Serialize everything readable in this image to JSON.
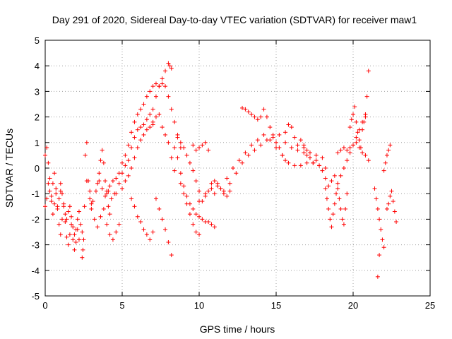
{
  "chart_data": {
    "type": "scatter",
    "title": "Day 291 of 2020, Sidereal Day-to-day VTEC variation (SDTVAR) for receiver maw1",
    "xlabel": "GPS time / hours",
    "ylabel": "SDTVAR / TECUs",
    "xlim": [
      0,
      25
    ],
    "ylim": [
      -5,
      5
    ],
    "xticks": [
      0,
      5,
      10,
      15,
      20,
      25
    ],
    "yticks": [
      -5,
      -4,
      -3,
      -2,
      -1,
      0,
      1,
      2,
      3,
      4,
      5
    ],
    "grid": true,
    "marker": "+",
    "marker_color": "#ff0000",
    "series": [
      {
        "name": "SDTVAR",
        "tracks": [
          {
            "x": [
              0.0,
              0.1,
              0.2,
              0.3,
              0.4,
              0.5,
              0.6,
              0.7,
              0.8,
              0.9,
              1.0,
              1.1,
              1.2,
              1.3,
              1.4,
              1.5,
              1.6,
              1.7,
              1.8,
              1.9,
              2.0,
              2.1,
              2.2
            ],
            "y": [
              -1.5,
              -1.2,
              -0.6,
              -0.9,
              -1.3,
              -1.8,
              -1.4,
              -1.0,
              -1.6,
              -2.2,
              -2.6,
              -2.0,
              -1.5,
              -2.1,
              -2.7,
              -3.0,
              -2.6,
              -2.2,
              -2.8,
              -3.2,
              -2.9,
              -2.4,
              -2.8
            ]
          },
          {
            "x": [
              0.0,
              0.1,
              0.2,
              0.3,
              0.4,
              0.5,
              0.6,
              0.7,
              0.8,
              0.9,
              1.0
            ],
            "y": [
              0.5,
              0.8,
              0.2,
              -0.4,
              -1.1,
              -0.6,
              -0.2,
              -0.8,
              -1.5,
              -1.2,
              -0.9
            ]
          },
          {
            "x": [
              1.0,
              1.1,
              1.2,
              1.3,
              1.4,
              1.5,
              1.6,
              1.7,
              1.8,
              1.9,
              2.0,
              2.1,
              2.2,
              2.3,
              2.4
            ],
            "y": [
              -0.6,
              -1.0,
              -1.4,
              -1.8,
              -2.0,
              -1.7,
              -1.5,
              -1.9,
              -2.3,
              -2.6,
              -2.4,
              -2.0,
              -1.7,
              -2.2,
              -2.5
            ]
          },
          {
            "x": [
              2.4,
              2.45,
              2.5,
              2.55,
              2.6,
              2.7,
              2.8,
              2.9,
              3.0
            ],
            "y": [
              -3.5,
              -3.2,
              -2.8,
              -1.5,
              0.5,
              1.0,
              -0.5,
              -1.2,
              -1.4
            ]
          },
          {
            "x": [
              2.7,
              2.9,
              3.1,
              3.3,
              3.5,
              3.7,
              3.9,
              4.1,
              4.3,
              4.5
            ],
            "y": [
              -0.5,
              -0.9,
              -1.3,
              -0.9,
              -0.5,
              -0.8,
              -1.1,
              -0.9,
              -1.2,
              -1.0
            ]
          },
          {
            "x": [
              3.0,
              3.2,
              3.4,
              3.6,
              3.8,
              4.0,
              4.2,
              4.4,
              4.6,
              4.8
            ],
            "y": [
              -1.6,
              -2.0,
              -2.3,
              -1.9,
              -1.6,
              -2.2,
              -2.6,
              -2.8,
              -2.5,
              -2.2
            ]
          },
          {
            "x": [
              3.4,
              3.5,
              3.6,
              3.7,
              3.8,
              3.9,
              4.0,
              4.1,
              4.2
            ],
            "y": [
              -0.6,
              -0.2,
              0.3,
              0.7,
              0.2,
              -0.5,
              -1.0,
              -1.5,
              -1.8
            ]
          },
          {
            "x": [
              4.0,
              4.2,
              4.4,
              4.6,
              4.8,
              5.0,
              5.2,
              5.4,
              5.6,
              5.8,
              6.0,
              6.2,
              6.4,
              6.6,
              6.8,
              7.0,
              7.2,
              7.4,
              7.6,
              7.8,
              8.0,
              8.1,
              8.2
            ],
            "y": [
              -0.9,
              -0.7,
              -0.5,
              -0.4,
              -0.2,
              0.2,
              0.5,
              0.9,
              1.4,
              1.8,
              2.1,
              2.3,
              2.5,
              2.8,
              3.0,
              3.2,
              3.3,
              3.2,
              3.5,
              3.8,
              4.1,
              4.0,
              3.9
            ]
          },
          {
            "x": [
              4.6,
              4.8,
              5.0,
              5.2,
              5.4,
              5.6,
              5.8,
              6.0,
              6.2,
              6.4,
              6.6,
              6.8,
              7.0,
              7.2,
              7.4,
              7.6,
              7.8,
              8.0,
              8.2,
              8.4,
              8.6,
              8.8
            ],
            "y": [
              -1.0,
              -0.6,
              -0.2,
              0.1,
              0.3,
              0.8,
              1.2,
              1.5,
              1.6,
              1.7,
              1.9,
              2.1,
              2.3,
              2.8,
              3.2,
              3.3,
              3.2,
              2.8,
              2.3,
              1.8,
              1.3,
              0.8
            ]
          },
          {
            "x": [
              5.0,
              5.2,
              5.4,
              5.6,
              5.8,
              6.0,
              6.2,
              6.4,
              6.6,
              6.8,
              7.0
            ],
            "y": [
              -0.8,
              -0.5,
              -0.3,
              0.0,
              0.4,
              0.8,
              1.1,
              1.3,
              1.5,
              1.6,
              1.7
            ]
          },
          {
            "x": [
              5.6,
              5.8,
              6.0,
              6.2,
              6.4,
              6.6,
              6.8,
              7.0
            ],
            "y": [
              -1.2,
              -1.5,
              -1.9,
              -2.1,
              -2.4,
              -2.6,
              -2.8,
              -2.5
            ]
          },
          {
            "x": [
              7.0,
              7.2,
              7.4,
              7.6,
              7.8,
              8.0,
              8.2,
              8.4
            ],
            "y": [
              1.8,
              2.0,
              2.1,
              1.6,
              1.3,
              1.0,
              0.4,
              -0.1
            ]
          },
          {
            "x": [
              7.2,
              7.4,
              7.6,
              7.8,
              8.0,
              8.2
            ],
            "y": [
              -1.2,
              -1.6,
              -2.0,
              -2.4,
              -2.9,
              -3.4
            ]
          },
          {
            "x": [
              8.4,
              8.6,
              8.8,
              9.0,
              9.2,
              9.4,
              9.6,
              9.8,
              10.0,
              10.2,
              10.4,
              10.6,
              10.8,
              11.0
            ],
            "y": [
              0.8,
              0.4,
              -0.2,
              -0.7,
              -1.1,
              -1.4,
              -1.6,
              -1.8,
              -1.9,
              -2.0,
              -2.1,
              -2.1,
              -2.2,
              -2.3
            ]
          },
          {
            "x": [
              8.6,
              8.8,
              9.0,
              9.2,
              9.4,
              9.6,
              9.8,
              10.0,
              10.2,
              10.4,
              10.6,
              10.8,
              11.0,
              11.2,
              11.4,
              11.6,
              11.8,
              12.0
            ],
            "y": [
              1.2,
              1.0,
              0.8,
              0.5,
              0.2,
              -0.1,
              -0.5,
              -0.9,
              -1.3,
              -1.1,
              -0.9,
              -0.6,
              -0.5,
              -0.6,
              -0.8,
              -1.0,
              -1.1,
              -0.9
            ]
          },
          {
            "x": [
              8.8,
              9.0,
              9.2,
              9.4,
              9.6,
              9.8,
              10.0
            ],
            "y": [
              -0.6,
              -1.0,
              -1.4,
              -1.8,
              -2.2,
              -2.5,
              -2.6
            ]
          },
          {
            "x": [
              9.6,
              9.8,
              10.0,
              10.2,
              10.4,
              10.6
            ],
            "y": [
              0.9,
              0.7,
              0.8,
              0.9,
              1.0,
              0.7
            ]
          },
          {
            "x": [
              10.0,
              10.4,
              10.8,
              11.2,
              11.6,
              12.0,
              12.4,
              12.8,
              13.2,
              13.6,
              14.0,
              14.4,
              14.8,
              15.2,
              15.6,
              16.0,
              16.4,
              16.8,
              17.2,
              17.6,
              18.0
            ],
            "y": [
              -1.3,
              -1.0,
              -0.8,
              -0.7,
              -0.9,
              -0.6,
              -0.2,
              0.2,
              0.5,
              0.7,
              0.9,
              1.1,
              1.2,
              1.3,
              1.0,
              0.8,
              0.7,
              0.8,
              0.6,
              0.5,
              0.4
            ]
          },
          {
            "x": [
              11.0,
              11.4,
              11.8,
              12.2,
              12.6,
              13.0,
              13.4,
              13.8,
              14.2,
              14.6,
              15.0,
              15.4,
              15.8,
              16.2,
              16.6,
              17.0,
              17.4,
              17.8,
              18.2
            ],
            "y": [
              -1.0,
              -0.8,
              -0.4,
              0.0,
              0.3,
              0.6,
              0.9,
              1.1,
              1.3,
              1.1,
              0.8,
              0.5,
              0.2,
              0.1,
              0.1,
              0.2,
              0.2,
              0.1,
              0.0
            ]
          },
          {
            "x": [
              12.8,
              13.0,
              13.2,
              13.4,
              13.6,
              13.8,
              14.0,
              14.2,
              14.4,
              14.6,
              14.8,
              15.0,
              15.2,
              15.4,
              15.6
            ],
            "y": [
              2.35,
              2.3,
              2.2,
              2.1,
              2.0,
              1.9,
              2.0,
              2.3,
              2.0,
              1.6,
              1.3,
              1.0,
              0.8,
              0.5,
              0.3
            ]
          },
          {
            "x": [
              15.6,
              15.8,
              16.0,
              16.2,
              16.4,
              16.6,
              16.8,
              17.0
            ],
            "y": [
              1.4,
              1.7,
              1.6,
              1.2,
              0.9,
              1.1,
              0.9,
              0.7
            ]
          },
          {
            "x": [
              16.8,
              17.0,
              17.2,
              17.4,
              17.6,
              17.8,
              18.0,
              18.2,
              18.4,
              18.6,
              18.8,
              19.0,
              19.2,
              19.4,
              19.6,
              19.8,
              20.0,
              20.2,
              20.4,
              20.6,
              20.8
            ],
            "y": [
              0.6,
              0.5,
              0.4,
              0.2,
              0.3,
              0.1,
              -0.1,
              -0.4,
              -0.7,
              -0.5,
              -0.3,
              -0.6,
              -0.3,
              0.0,
              0.3,
              0.6,
              0.9,
              1.2,
              1.5,
              1.8,
              2.0
            ]
          },
          {
            "x": [
              18.2,
              18.3,
              18.4,
              18.5,
              18.6,
              18.7,
              18.8,
              18.9,
              19.0,
              19.1,
              19.2,
              19.3,
              19.4,
              19.5,
              19.6
            ],
            "y": [
              -0.8,
              -1.2,
              -1.6,
              -2.0,
              -2.3,
              -1.8,
              -1.4,
              -1.0,
              -0.8,
              -1.2,
              -1.6,
              -2.0,
              -2.2,
              -1.6,
              -1.0
            ]
          },
          {
            "x": [
              19.0,
              19.2,
              19.4,
              19.6,
              19.8,
              20.0,
              20.2,
              20.4,
              20.6,
              20.8,
              21.0
            ],
            "y": [
              0.6,
              0.7,
              0.8,
              0.7,
              0.8,
              0.9,
              1.0,
              0.8,
              0.6,
              0.5,
              0.3
            ]
          },
          {
            "x": [
              19.8,
              19.9,
              20.0,
              20.1,
              20.2,
              20.3,
              20.4,
              20.5
            ],
            "y": [
              1.6,
              1.9,
              2.1,
              2.4,
              1.8,
              1.4,
              1.1,
              0.8
            ]
          },
          {
            "x": [
              20.6,
              20.7,
              20.8,
              20.9,
              21.0
            ],
            "y": [
              1.5,
              1.8,
              2.1,
              2.8,
              3.8
            ]
          },
          {
            "x": [
              21.4,
              21.5,
              21.6,
              21.7,
              21.8,
              21.9,
              22.0
            ],
            "y": [
              -0.8,
              -1.2,
              -1.6,
              -2.0,
              -2.4,
              -2.8,
              -3.1
            ]
          },
          {
            "x": [
              21.6,
              21.7
            ],
            "y": [
              -4.25,
              -3.4
            ]
          },
          {
            "x": [
              22.0,
              22.1,
              22.2,
              22.3,
              22.4
            ],
            "y": [
              -0.1,
              0.2,
              0.5,
              0.7,
              0.9
            ]
          },
          {
            "x": [
              22.2,
              22.3,
              22.4,
              22.5,
              22.6,
              22.7,
              22.8
            ],
            "y": [
              -1.6,
              -1.4,
              -1.1,
              -0.9,
              -1.3,
              -1.7,
              -2.1
            ]
          }
        ]
      }
    ]
  }
}
